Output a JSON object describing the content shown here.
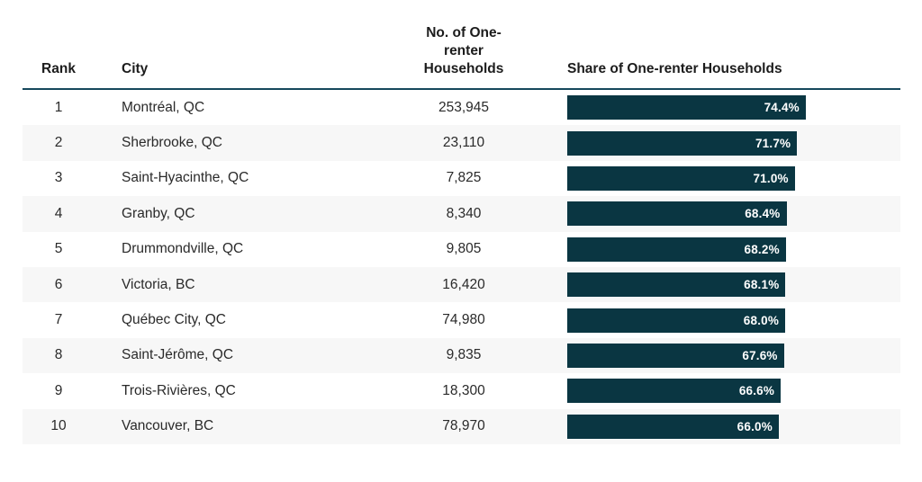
{
  "colors": {
    "bar_fill": "#0a3642",
    "header_rule": "#16485c",
    "row_stripe": "#f7f7f7",
    "bar_label_text": "#ffffff"
  },
  "table": {
    "headers": {
      "rank": "Rank",
      "city": "City",
      "households": "No. of One-renter Households",
      "share": "Share of One-renter Households"
    },
    "rows": [
      {
        "rank": "1",
        "city": "Montréal, QC",
        "households": "253,945",
        "share_label": "74.4%",
        "share_pct": 74.4
      },
      {
        "rank": "2",
        "city": "Sherbrooke, QC",
        "households": "23,110",
        "share_label": "71.7%",
        "share_pct": 71.7
      },
      {
        "rank": "3",
        "city": "Saint-Hyacinthe, QC",
        "households": "7,825",
        "share_label": "71.0%",
        "share_pct": 71.0
      },
      {
        "rank": "4",
        "city": "Granby, QC",
        "households": "8,340",
        "share_label": "68.4%",
        "share_pct": 68.4
      },
      {
        "rank": "5",
        "city": "Drummondville, QC",
        "households": "9,805",
        "share_label": "68.2%",
        "share_pct": 68.2
      },
      {
        "rank": "6",
        "city": "Victoria, BC",
        "households": "16,420",
        "share_label": "68.1%",
        "share_pct": 68.1
      },
      {
        "rank": "7",
        "city": "Québec City, QC",
        "households": "74,980",
        "share_label": "68.0%",
        "share_pct": 68.0
      },
      {
        "rank": "8",
        "city": "Saint-Jérôme, QC",
        "households": "9,835",
        "share_label": "67.6%",
        "share_pct": 67.6
      },
      {
        "rank": "9",
        "city": "Trois-Rivières, QC",
        "households": "18,300",
        "share_label": "66.6%",
        "share_pct": 66.6
      },
      {
        "rank": "10",
        "city": "Vancouver, BC",
        "households": "78,970",
        "share_label": "66.0%",
        "share_pct": 66.0
      }
    ]
  },
  "chart_data": {
    "type": "bar",
    "orientation": "horizontal",
    "title": "",
    "categories": [
      "Montréal, QC",
      "Sherbrooke, QC",
      "Saint-Hyacinthe, QC",
      "Granby, QC",
      "Drummondville, QC",
      "Victoria, BC",
      "Québec City, QC",
      "Saint-Jérôme, QC",
      "Trois-Rivières, QC",
      "Vancouver, BC"
    ],
    "series": [
      {
        "name": "No. of One-renter Households",
        "values": [
          253945,
          23110,
          7825,
          8340,
          9805,
          16420,
          74980,
          9835,
          18300,
          78970
        ]
      },
      {
        "name": "Share of One-renter Households",
        "unit": "%",
        "values": [
          74.4,
          71.7,
          71.0,
          68.4,
          68.2,
          68.1,
          68.0,
          67.6,
          66.6,
          66.0
        ]
      }
    ],
    "xlabel": "",
    "ylabel": "",
    "xlim": [
      0,
      100
    ],
    "grid": false,
    "legend_position": "none",
    "bar_labels_shown": true
  }
}
